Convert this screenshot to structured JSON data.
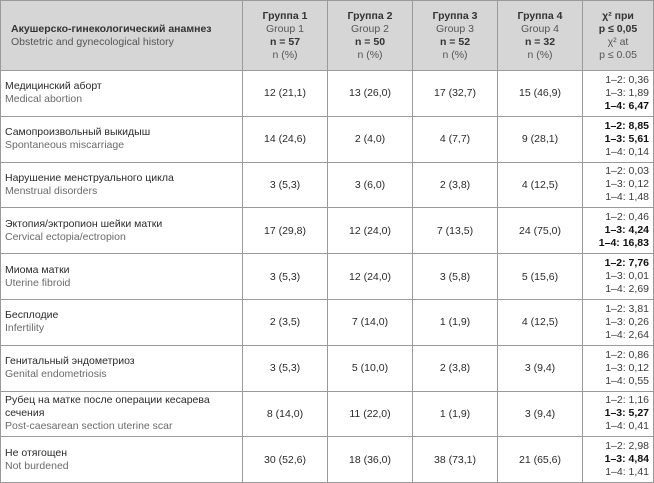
{
  "header": {
    "col0": {
      "ru": "Акушерско-гинекологический анамнез",
      "en": "Obstetric and gynecological history"
    },
    "groups": [
      {
        "ru": "Группа 1",
        "en": "Group 1",
        "n": "n = 57",
        "pct": "n (%)"
      },
      {
        "ru": "Группа 2",
        "en": "Group 2",
        "n": "n = 50",
        "pct": "n (%)"
      },
      {
        "ru": "Группа 3",
        "en": "Group 3",
        "n": "n = 52",
        "pct": "n (%)"
      },
      {
        "ru": "Группа 4",
        "en": "Group 4",
        "n": "n = 32",
        "pct": "n (%)"
      }
    ],
    "chi": {
      "line1": "χ² при",
      "line2": "p ≤ 0,05",
      "line3": "χ² at",
      "line4": "p ≤ 0.05"
    }
  },
  "rows": [
    {
      "ru": "Медицинский аборт",
      "en": "Medical abortion",
      "values": [
        "12 (21,1)",
        "13 (26,0)",
        "17 (32,7)",
        "15 (46,9)"
      ],
      "chi": [
        {
          "text": "1–2: 0,36",
          "bold": false
        },
        {
          "text": "1–3: 1,89",
          "bold": false
        },
        {
          "text": "1–4: 6,47",
          "bold": true
        }
      ]
    },
    {
      "ru": "Самопроизвольный выкидыш",
      "en": "Spontaneous miscarriage",
      "values": [
        "14 (24,6)",
        "2 (4,0)",
        "4 (7,7)",
        "9 (28,1)"
      ],
      "chi": [
        {
          "text": "1–2: 8,85",
          "bold": true
        },
        {
          "text": "1–3: 5,61",
          "bold": true
        },
        {
          "text": "1–4: 0,14",
          "bold": false
        }
      ]
    },
    {
      "ru": "Нарушение менструального цикла",
      "en": "Menstrual disorders",
      "values": [
        "3 (5,3)",
        "3 (6,0)",
        "2 (3,8)",
        "4 (12,5)"
      ],
      "chi": [
        {
          "text": "1–2: 0,03",
          "bold": false
        },
        {
          "text": "1–3: 0,12",
          "bold": false
        },
        {
          "text": "1–4: 1,48",
          "bold": false
        }
      ]
    },
    {
      "ru": "Эктопия/эктропион шейки матки",
      "en": "Cervical ectopia/ectropion",
      "values": [
        "17 (29,8)",
        "12 (24,0)",
        "7 (13,5)",
        "24 (75,0)"
      ],
      "chi": [
        {
          "text": "1–2: 0,46",
          "bold": false
        },
        {
          "text": "1–3: 4,24",
          "bold": true
        },
        {
          "text": "1–4: 16,83",
          "bold": true
        }
      ]
    },
    {
      "ru": "Миома матки",
      "en": "Uterine fibroid",
      "values": [
        "3 (5,3)",
        "12 (24,0)",
        "3 (5,8)",
        "5 (15,6)"
      ],
      "chi": [
        {
          "text": "1–2: 7,76",
          "bold": true
        },
        {
          "text": "1–3: 0,01",
          "bold": false
        },
        {
          "text": "1–4: 2,69",
          "bold": false
        }
      ]
    },
    {
      "ru": "Бесплодие",
      "en": "Infertility",
      "values": [
        "2 (3,5)",
        "7 (14,0)",
        "1 (1,9)",
        "4 (12,5)"
      ],
      "chi": [
        {
          "text": "1–2: 3,81",
          "bold": false
        },
        {
          "text": "1–3: 0,26",
          "bold": false
        },
        {
          "text": "1–4: 2,64",
          "bold": false
        }
      ]
    },
    {
      "ru": "Генитальный эндометриоз",
      "en": "Genital endometriosis",
      "values": [
        "3 (5,3)",
        "5 (10,0)",
        "2 (3,8)",
        "3 (9,4)"
      ],
      "chi": [
        {
          "text": "1–2: 0,86",
          "bold": false
        },
        {
          "text": "1–3: 0,12",
          "bold": false
        },
        {
          "text": "1–4: 0,55",
          "bold": false
        }
      ]
    },
    {
      "ru": "Рубец на матке после операции кесарева сечения",
      "en": "Post-caesarean section uterine scar",
      "values": [
        "8 (14,0)",
        "11 (22,0)",
        "1 (1,9)",
        "3 (9,4)"
      ],
      "chi": [
        {
          "text": "1–2: 1,16",
          "bold": false
        },
        {
          "text": "1–3: 5,27",
          "bold": true
        },
        {
          "text": "1–4: 0,41",
          "bold": false
        }
      ]
    },
    {
      "ru": "Не отягощен",
      "en": "Not burdened",
      "values": [
        "30 (52,6)",
        "18 (36,0)",
        "38 (73,1)",
        "21 (65,6)"
      ],
      "chi": [
        {
          "text": "1–2: 2,98",
          "bold": false
        },
        {
          "text": "1–3: 4,84",
          "bold": true
        },
        {
          "text": "1–4: 1,41",
          "bold": false
        }
      ]
    }
  ]
}
